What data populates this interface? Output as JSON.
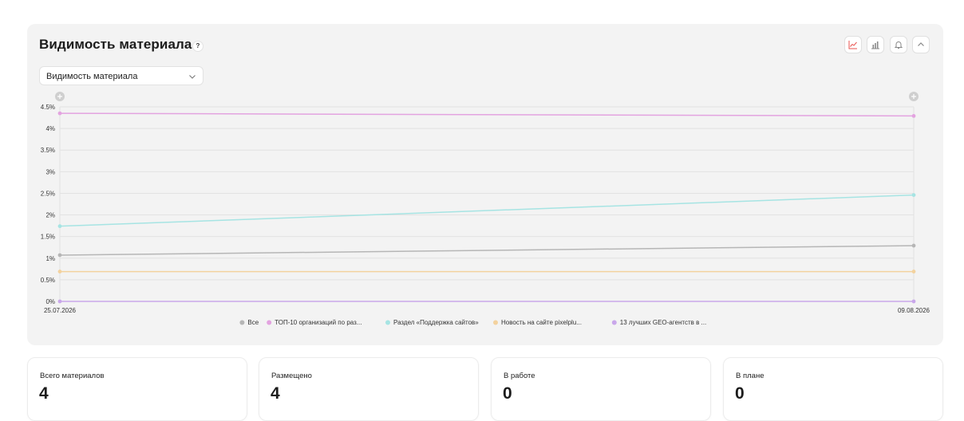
{
  "panel": {
    "title": "Видимость материала",
    "help": "?",
    "select_value": "Видимость материала",
    "toolbar": [
      "line-chart-icon",
      "bar-chart-icon",
      "bell-icon",
      "chevron-up-icon"
    ]
  },
  "colors": {
    "accent": "#e8534f",
    "series": [
      "#b6b6b6",
      "#e3a3e0",
      "#a6e4e3",
      "#f3d29e",
      "#c9a7ea"
    ]
  },
  "chart_data": {
    "type": "line",
    "x": [
      "25.07.2026",
      "09.08.2026"
    ],
    "yticks": [
      "0%",
      "0.5%",
      "1%",
      "1.5%",
      "2%",
      "2.5%",
      "3%",
      "3.5%",
      "4%",
      "4.5%"
    ],
    "ylim": [
      0,
      4.5
    ],
    "grid": true,
    "legend_position": "bottom-center",
    "series": [
      {
        "name": "Все",
        "values": [
          1.07,
          1.29
        ]
      },
      {
        "name": "ТОП-10 организаций по раз...",
        "values": [
          4.35,
          4.29
        ]
      },
      {
        "name": "Раздел «Поддержка сайтов»",
        "values": [
          1.74,
          2.46
        ]
      },
      {
        "name": "Новость на сайте pixelplu...",
        "values": [
          0.69,
          0.69
        ]
      },
      {
        "name": "13 лучших GEO-агентств в ...",
        "values": [
          0.0,
          0.0
        ]
      }
    ]
  },
  "stats": [
    {
      "label": "Всего материалов",
      "value": "4"
    },
    {
      "label": "Размещено",
      "value": "4"
    },
    {
      "label": "В работе",
      "value": "0"
    },
    {
      "label": "В плане",
      "value": "0"
    }
  ]
}
